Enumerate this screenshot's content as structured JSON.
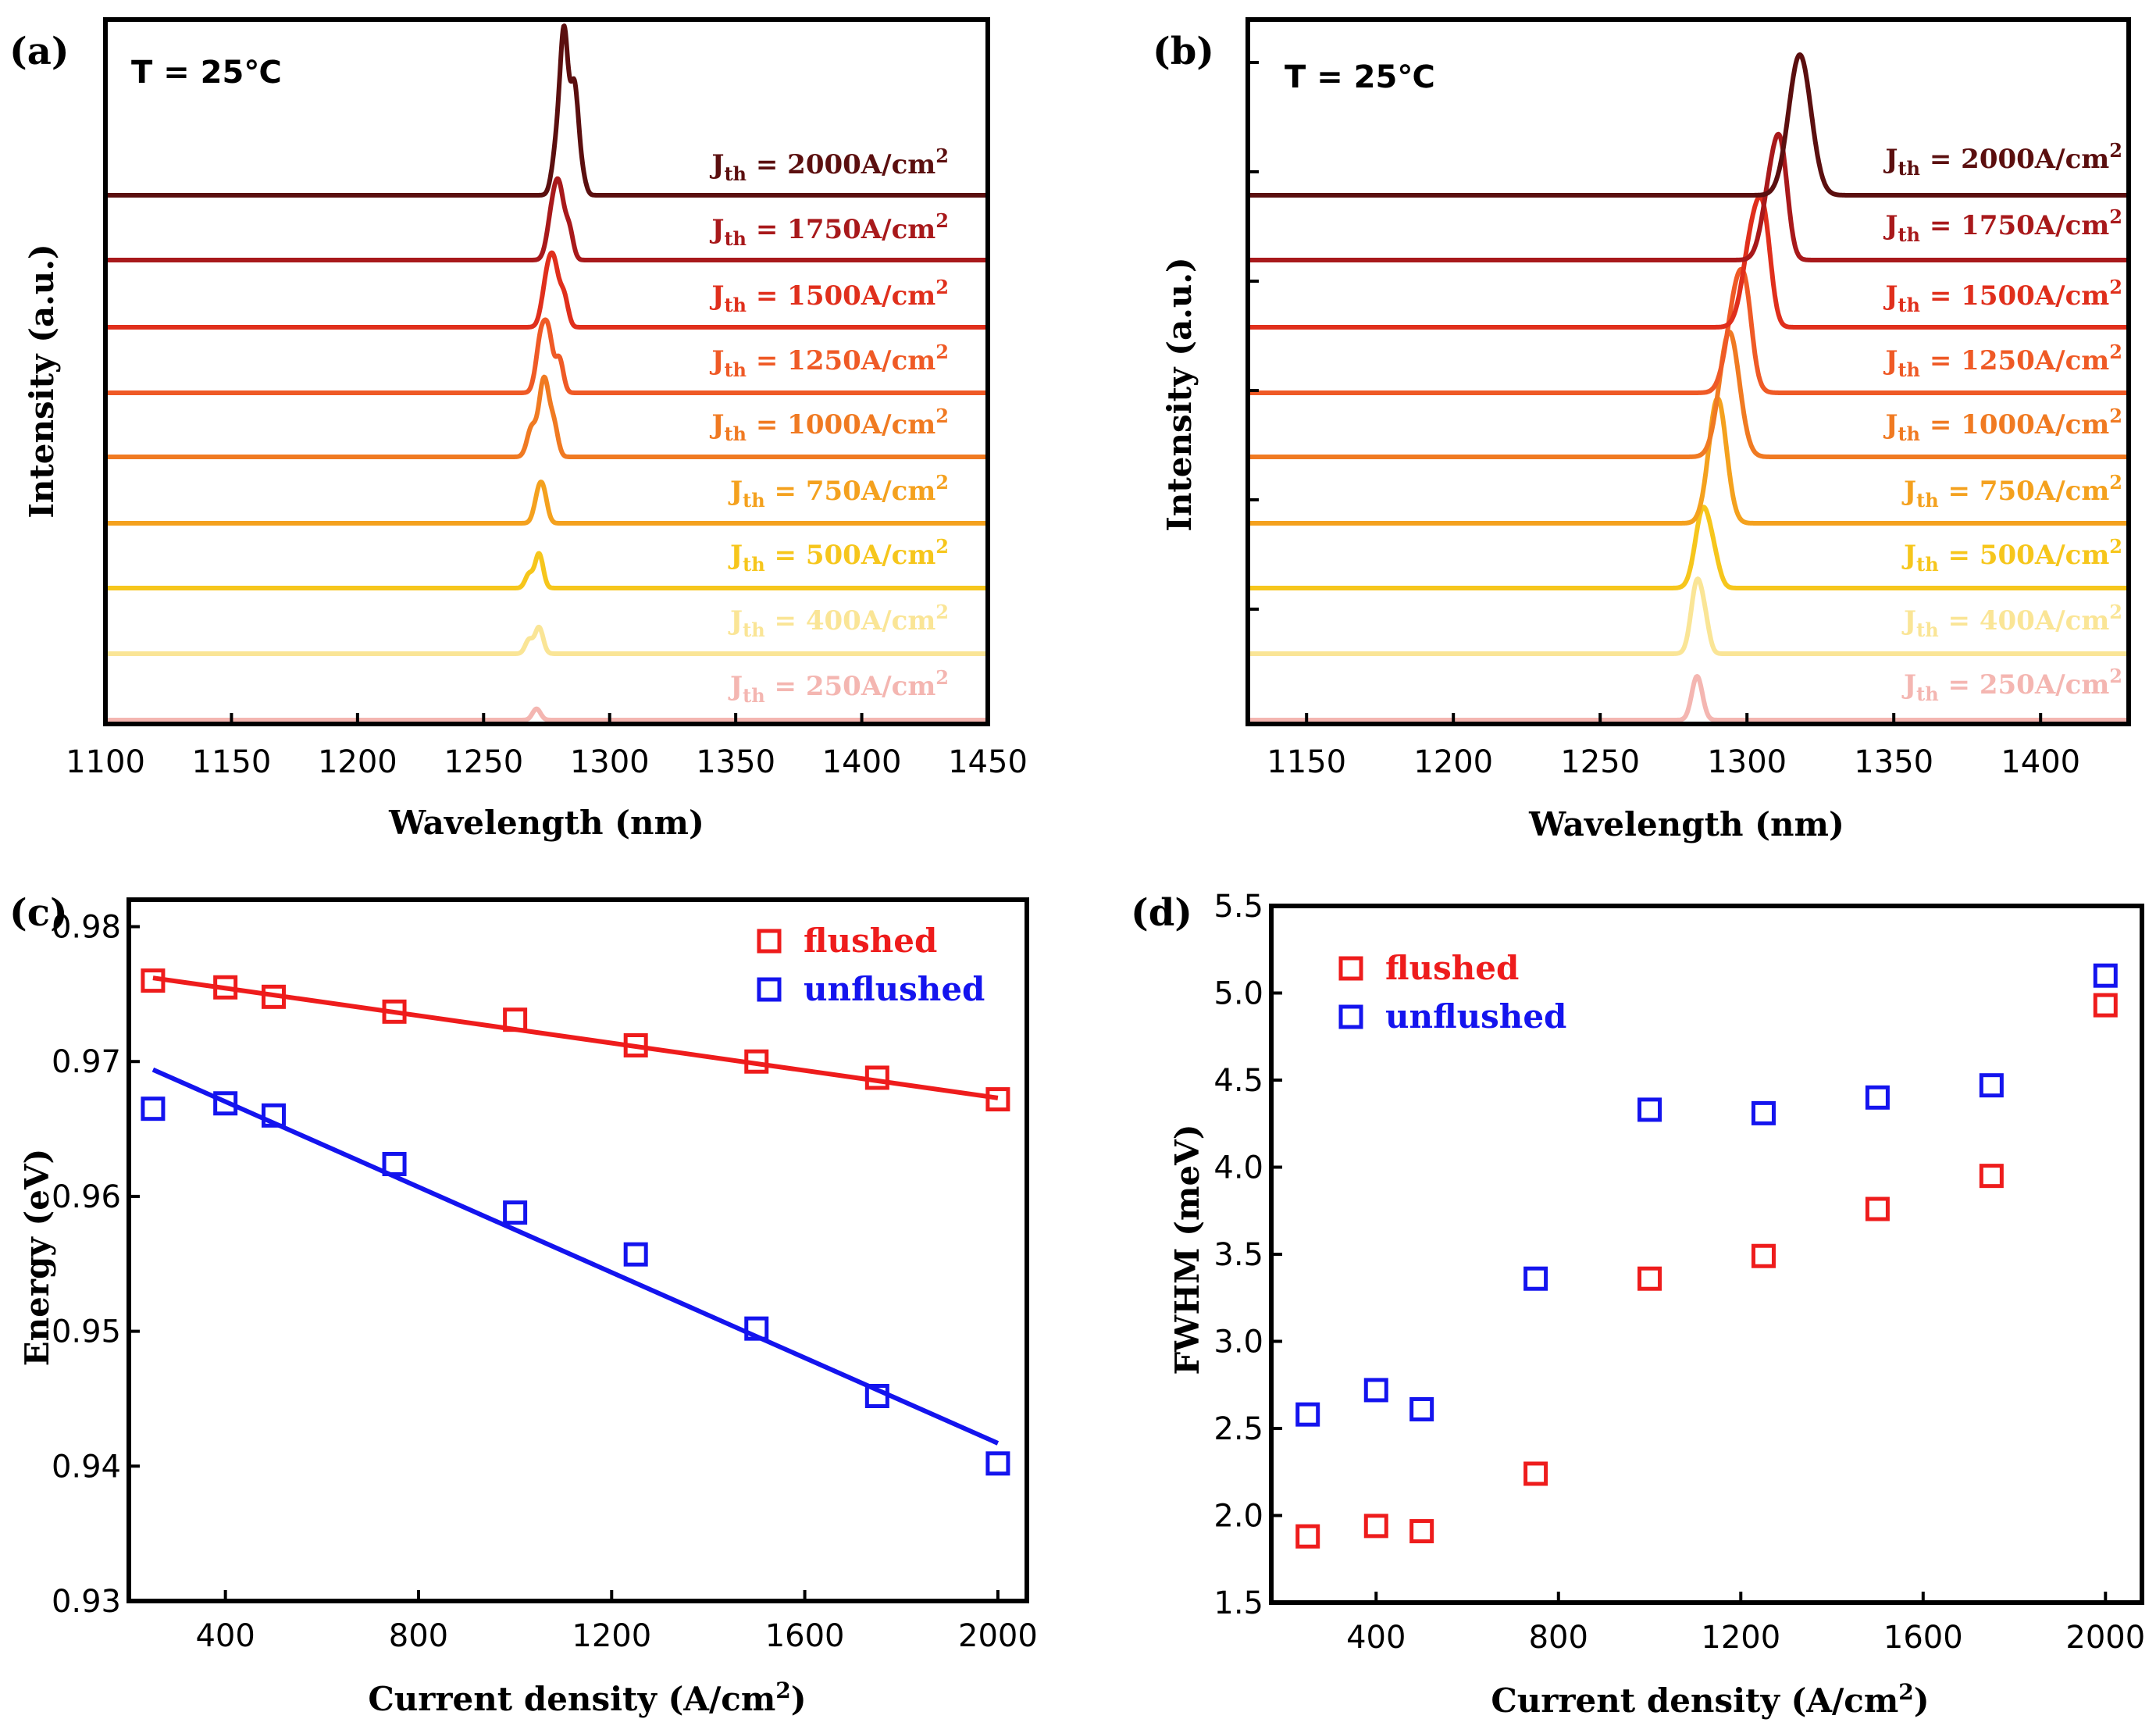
{
  "chart_data": [
    {
      "panel": "(a)",
      "type": "line",
      "annotation": "T = 25℃",
      "xlabel": "Wavelength (nm)",
      "ylabel": "Intensity (a.u.)",
      "xlim": [
        1100,
        1450
      ],
      "xticks": [
        1100,
        1150,
        1200,
        1250,
        1300,
        1350,
        1400,
        1450
      ],
      "series": [
        {
          "name": "Jth = 250A/cm2",
          "jth": "250",
          "color": "#f4b6b1",
          "peaks": [
            {
              "wl": 1271,
              "h": 0.18,
              "w": 1.6
            }
          ]
        },
        {
          "name": "Jth = 400A/cm2",
          "jth": "400",
          "color": "#fae596",
          "peaks": [
            {
              "wl": 1268,
              "h": 0.22,
              "w": 1.5
            },
            {
              "wl": 1272,
              "h": 0.42,
              "w": 1.6
            }
          ]
        },
        {
          "name": "Jth = 500A/cm2",
          "jth": "500",
          "color": "#f6c61c",
          "peaks": [
            {
              "wl": 1268,
              "h": 0.22,
              "w": 1.5
            },
            {
              "wl": 1272,
              "h": 0.55,
              "w": 1.6
            }
          ]
        },
        {
          "name": "Jth = 750A/cm2",
          "jth": "750",
          "color": "#f4a11e",
          "peaks": [
            {
              "wl": 1272,
              "h": 0.48,
              "w": 1.8
            },
            {
              "wl": 1274,
              "h": 0.3,
              "w": 1.6
            }
          ]
        },
        {
          "name": "Jth = 1000A/cm2",
          "jth": "1000",
          "color": "#f07a22",
          "peaks": [
            {
              "wl": 1269,
              "h": 0.45,
              "w": 1.8
            },
            {
              "wl": 1274,
              "h": 1.25,
              "w": 2.0
            },
            {
              "wl": 1278,
              "h": 0.45,
              "w": 1.6
            }
          ]
        },
        {
          "name": "Jth = 1250A/cm2",
          "jth": "1250",
          "color": "#ef5a26",
          "peaks": [
            {
              "wl": 1273,
              "h": 0.95,
              "w": 2.0
            },
            {
              "wl": 1276,
              "h": 0.7,
              "w": 1.6
            },
            {
              "wl": 1280,
              "h": 0.55,
              "w": 1.6
            }
          ]
        },
        {
          "name": "Jth = 1500A/cm2",
          "jth": "1500",
          "color": "#e02f1c",
          "peaks": [
            {
              "wl": 1275,
              "h": 0.65,
              "w": 2.0
            },
            {
              "wl": 1278,
              "h": 0.9,
              "w": 2.0
            },
            {
              "wl": 1282,
              "h": 0.45,
              "w": 1.6
            }
          ]
        },
        {
          "name": "Jth = 1750A/cm2",
          "jth": "1750",
          "color": "#a8191b",
          "peaks": [
            {
              "wl": 1277,
              "h": 0.6,
              "w": 2.0
            },
            {
              "wl": 1280,
              "h": 1.05,
              "w": 2.0
            },
            {
              "wl": 1284,
              "h": 0.45,
              "w": 1.6
            }
          ]
        },
        {
          "name": "Jth = 2000A/cm2",
          "jth": "2000",
          "color": "#5b0f0f",
          "peaks": [
            {
              "wl": 1279,
              "h": 0.75,
              "w": 1.8
            },
            {
              "wl": 1282,
              "h": 2.45,
              "w": 1.6
            },
            {
              "wl": 1286,
              "h": 1.7,
              "w": 1.6
            },
            {
              "wl": 1289,
              "h": 0.3,
              "w": 1.5
            }
          ]
        }
      ]
    },
    {
      "panel": "(b)",
      "type": "line",
      "annotation": "T = 25℃",
      "xlabel": "Wavelength (nm)",
      "ylabel": "Intensity (a.u.)",
      "xlim": [
        1130,
        1430
      ],
      "xticks": [
        1150,
        1200,
        1250,
        1300,
        1350,
        1400
      ],
      "series": [
        {
          "name": "Jth = 250A/cm2",
          "jth": "250",
          "color": "#f4b6b1",
          "peaks": [
            {
              "wl": 1283,
              "h": 0.7,
              "w": 1.8
            }
          ]
        },
        {
          "name": "Jth = 400A/cm2",
          "jth": "400",
          "color": "#fae596",
          "peaks": [
            {
              "wl": 1283,
              "h": 1.15,
              "w": 2.0
            },
            {
              "wl": 1286,
              "h": 0.3,
              "w": 1.5
            }
          ]
        },
        {
          "name": "Jth = 500A/cm2",
          "jth": "500",
          "color": "#f6c61c",
          "peaks": [
            {
              "wl": 1285,
              "h": 1.25,
              "w": 2.6
            },
            {
              "wl": 1289,
              "h": 0.3,
              "w": 2.0
            }
          ]
        },
        {
          "name": "Jth = 750A/cm2",
          "jth": "750",
          "color": "#f4a11e",
          "peaks": [
            {
              "wl": 1290,
              "h": 2.0,
              "w": 3.0
            }
          ]
        },
        {
          "name": "Jth = 1000A/cm2",
          "jth": "1000",
          "color": "#f07a22",
          "peaks": [
            {
              "wl": 1294,
              "h": 2.0,
              "w": 3.4
            }
          ]
        },
        {
          "name": "Jth = 1250A/cm2",
          "jth": "1250",
          "color": "#ef5a26",
          "peaks": [
            {
              "wl": 1297,
              "h": 1.75,
              "w": 3.4
            },
            {
              "wl": 1300,
              "h": 0.5,
              "w": 2.0
            }
          ]
        },
        {
          "name": "Jth = 1500A/cm2",
          "jth": "1500",
          "color": "#e02f1c",
          "peaks": [
            {
              "wl": 1302,
              "h": 1.5,
              "w": 3.2
            },
            {
              "wl": 1306,
              "h": 1.2,
              "w": 2.4
            }
          ]
        },
        {
          "name": "Jth = 1750A/cm2",
          "jth": "1750",
          "color": "#a8191b",
          "peaks": [
            {
              "wl": 1309,
              "h": 1.45,
              "w": 3.2
            },
            {
              "wl": 1312,
              "h": 0.9,
              "w": 2.2
            }
          ]
        },
        {
          "name": "Jth = 2000A/cm2",
          "jth": "2000",
          "color": "#5b0f0f",
          "peaks": [
            {
              "wl": 1318,
              "h": 2.25,
              "w": 3.8
            }
          ]
        }
      ]
    },
    {
      "panel": "(c)",
      "type": "scatter",
      "xlabel": "Current density (A/cm2)",
      "ylabel": "Energy (eV)",
      "xlim": [
        200,
        2060
      ],
      "ylim": [
        0.93,
        0.982
      ],
      "xticks": [
        400,
        800,
        1200,
        1600,
        2000
      ],
      "yticks": [
        0.93,
        0.94,
        0.95,
        0.96,
        0.97,
        0.98
      ],
      "series": [
        {
          "name": "flushed",
          "color": "#ee1c1c",
          "x": [
            250,
            400,
            500,
            750,
            1000,
            1250,
            1500,
            1750,
            2000
          ],
          "y": [
            0.976,
            0.9755,
            0.9748,
            0.9737,
            0.9731,
            0.9712,
            0.97,
            0.9688,
            0.9672
          ],
          "fit": [
            0.9762,
            0.9673
          ]
        },
        {
          "name": "unflushed",
          "color": "#1414ee",
          "x": [
            250,
            400,
            500,
            750,
            1000,
            1250,
            1500,
            1750,
            2000
          ],
          "y": [
            0.9665,
            0.9669,
            0.966,
            0.9624,
            0.9588,
            0.9557,
            0.9502,
            0.9452,
            0.9402
          ],
          "fit": [
            0.9694,
            0.9417
          ]
        }
      ]
    },
    {
      "panel": "(d)",
      "type": "scatter",
      "xlabel": "Current density (A/cm2)",
      "ylabel": "FWHM (meV)",
      "xlim": [
        170,
        2080
      ],
      "ylim": [
        1.5,
        5.5
      ],
      "xticks": [
        400,
        800,
        1200,
        1600,
        2000
      ],
      "yticks": [
        1.5,
        2.0,
        2.5,
        3.0,
        3.5,
        4.0,
        4.5,
        5.0,
        5.5
      ],
      "series": [
        {
          "name": "flushed",
          "color": "#ee1c1c",
          "x": [
            250,
            400,
            500,
            750,
            1000,
            1250,
            1500,
            1750,
            2000
          ],
          "y": [
            1.88,
            1.94,
            1.91,
            2.24,
            3.36,
            3.49,
            3.76,
            3.95,
            4.93
          ]
        },
        {
          "name": "unflushed",
          "color": "#1414ee",
          "x": [
            250,
            400,
            500,
            750,
            1000,
            1250,
            1500,
            1750,
            2000
          ],
          "y": [
            2.58,
            2.72,
            2.61,
            3.36,
            4.33,
            4.31,
            4.4,
            4.47,
            5.1
          ]
        }
      ]
    }
  ],
  "labels": {
    "a": "(a)",
    "b": "(b)",
    "c": "(c)",
    "d": "(d)",
    "temp": "T = 25℃",
    "wavelength": "Wavelength (nm)",
    "intensity": "Intensity (a.u.)",
    "energy": "Energy (eV)",
    "fwhm": "FWHM (meV)",
    "current_prefix": "Current density (A/cm",
    "current_exp": "2",
    "current_suffix": ")",
    "jth_main": "J",
    "jth_sub": "th",
    "jth_eq": " = ",
    "jth_unit": "A/cm",
    "jth_exp": "2"
  }
}
